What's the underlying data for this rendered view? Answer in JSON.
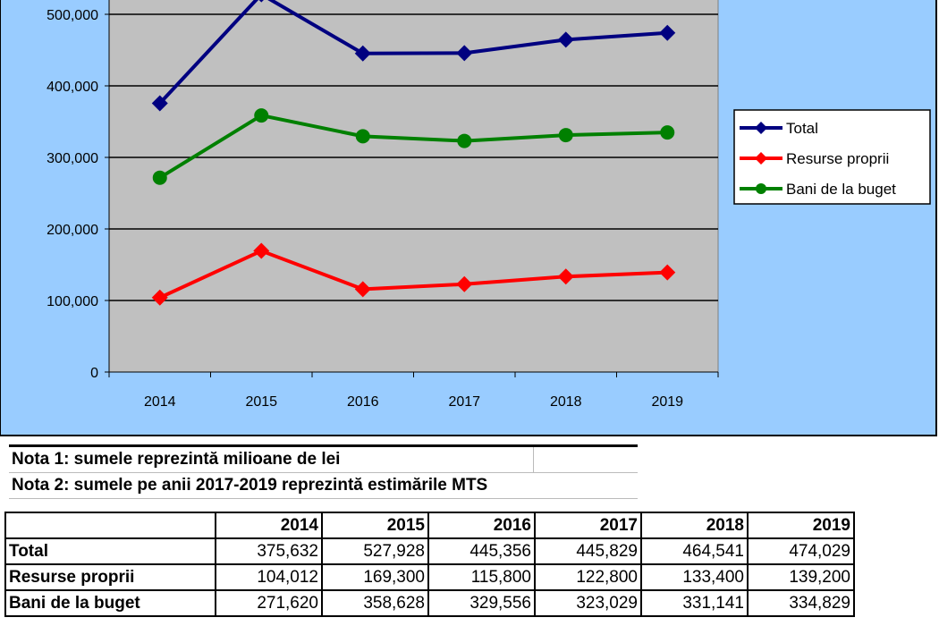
{
  "chart_data": {
    "type": "line",
    "title": "",
    "xlabel": "",
    "ylabel": "",
    "categories": [
      "2014",
      "2015",
      "2016",
      "2017",
      "2018",
      "2019"
    ],
    "ylim": [
      0,
      600000
    ],
    "yticks": [
      0,
      100000,
      200000,
      300000,
      400000,
      500000
    ],
    "ytick_labels": [
      "0",
      "100,000",
      "200,000",
      "300,000",
      "400,000",
      "500,000"
    ],
    "grid": true,
    "legend_position": "right",
    "series": [
      {
        "name": "Total",
        "color": "#000080",
        "values": [
          375632,
          527928,
          445356,
          445829,
          464541,
          474029
        ]
      },
      {
        "name": "Resurse proprii",
        "color": "#ff0000",
        "values": [
          104012,
          169300,
          115800,
          122800,
          133400,
          139200
        ]
      },
      {
        "name": "Bani de la buget",
        "color": "#008000",
        "values": [
          271620,
          358628,
          329556,
          323029,
          331141,
          334829
        ]
      }
    ]
  },
  "notes": {
    "note1": "Nota 1: sumele reprezintă milioane de lei",
    "note2": "Nota 2: sumele pe anii 2017-2019 reprezintă estimările MTS"
  },
  "table": {
    "headers": [
      "",
      "2014",
      "2015",
      "2016",
      "2017",
      "2018",
      "2019"
    ],
    "rows": [
      [
        "Total",
        "375,632",
        "527,928",
        "445,356",
        "445,829",
        "464,541",
        "474,029"
      ],
      [
        "Resurse proprii",
        "104,012",
        "169,300",
        "115,800",
        "122,800",
        "133,400",
        "139,200"
      ],
      [
        "Bani de la buget",
        "271,620",
        "358,628",
        "329,556",
        "323,029",
        "331,141",
        "334,829"
      ]
    ]
  }
}
